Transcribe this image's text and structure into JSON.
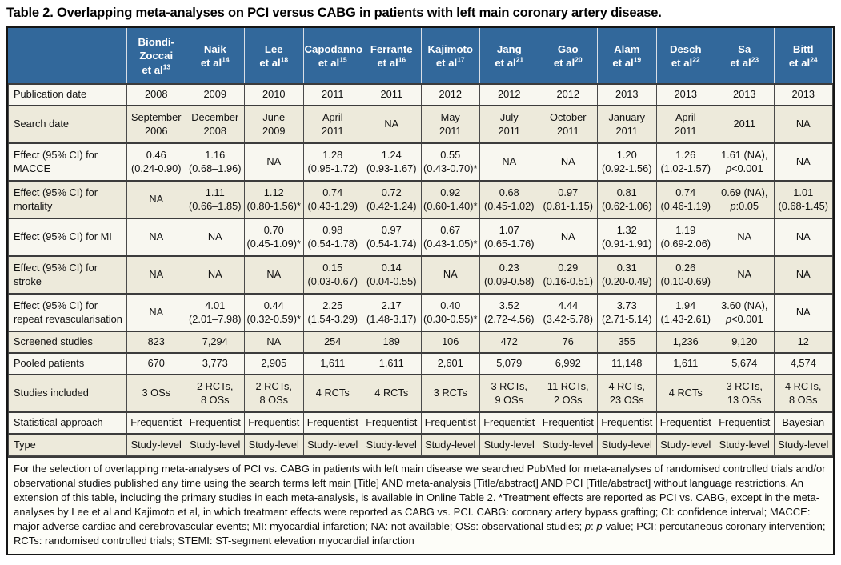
{
  "title": "Table 2. Overlapping meta-analyses on PCI versus CABG in patients with left main coronary artery disease.",
  "colors": {
    "header_bg": "#32689b",
    "header_text": "#ffffff",
    "row_plain_bg": "#f8f7f0",
    "row_alt_bg": "#edeadb",
    "footnote_bg": "#fdfdf8",
    "inner_border": "#4a4a4a",
    "outer_border": "#161616",
    "header_separator": "#d9dfe6"
  },
  "table": {
    "columns": [
      {
        "lines": [
          "Biondi-",
          "Zoccai",
          "et al"
        ],
        "sup": "13"
      },
      {
        "lines": [
          "Naik",
          "et al"
        ],
        "sup": "14"
      },
      {
        "lines": [
          "Lee",
          "et al"
        ],
        "sup": "18"
      },
      {
        "lines": [
          "Capodanno",
          "et al"
        ],
        "sup": "15"
      },
      {
        "lines": [
          "Ferrante",
          "et al"
        ],
        "sup": "16"
      },
      {
        "lines": [
          "Kajimoto",
          "et al"
        ],
        "sup": "17"
      },
      {
        "lines": [
          "Jang",
          "et al"
        ],
        "sup": "21"
      },
      {
        "lines": [
          "Gao",
          "et al"
        ],
        "sup": "20"
      },
      {
        "lines": [
          "Alam",
          "et al"
        ],
        "sup": "19"
      },
      {
        "lines": [
          "Desch",
          "et al"
        ],
        "sup": "22"
      },
      {
        "lines": [
          "Sa",
          "et al"
        ],
        "sup": "23"
      },
      {
        "lines": [
          "Bittl",
          "et al"
        ],
        "sup": "24"
      }
    ],
    "rows": [
      {
        "label": "Publication date",
        "values": [
          "2008",
          "2009",
          "2010",
          "2011",
          "2011",
          "2012",
          "2012",
          "2012",
          "2013",
          "2013",
          "2013",
          "2013"
        ]
      },
      {
        "label": "Search date",
        "values": [
          "September\n2006",
          "December\n2008",
          "June\n2009",
          "April\n2011",
          "NA",
          "May\n2011",
          "July\n2011",
          "October\n2011",
          "January\n2011",
          "April\n2011",
          "2011",
          "NA"
        ]
      },
      {
        "label": "Effect (95% CI) for MACCE",
        "values": [
          "0.46\n(0.24-0.90)",
          "1.16\n(0.68–1.96)",
          "NA",
          "1.28\n(0.95-1.72)",
          "1.24\n(0.93-1.67)",
          "0.55\n(0.43-0.70)*",
          "NA",
          "NA",
          "1.20\n(0.92-1.56)",
          "1.26\n(1.02-1.57)",
          "1.61 (NA),\np<0.001",
          "NA"
        ]
      },
      {
        "label": "Effect (95% CI) for mortality",
        "values": [
          "NA",
          "1.11\n(0.66–1.85)",
          "1.12\n(0.80-1.56)*",
          "0.74\n(0.43-1.29)",
          "0.72\n(0.42-1.24)",
          "0.92\n(0.60-1.40)*",
          "0.68\n(0.45-1.02)",
          "0.97\n(0.81-1.15)",
          "0.81\n(0.62-1.06)",
          "0.74\n(0.46-1.19)",
          "0.69 (NA),\np:0.05",
          "1.01\n(0.68-1.45)"
        ]
      },
      {
        "label": "Effect (95% CI) for MI",
        "values": [
          "NA",
          "NA",
          "0.70\n(0.45-1.09)*",
          "0.98\n(0.54-1.78)",
          "0.97\n(0.54-1.74)",
          "0.67\n(0.43-1.05)*",
          "1.07\n(0.65-1.76)",
          "NA",
          "1.32\n(0.91-1.91)",
          "1.19\n(0.69-2.06)",
          "NA",
          "NA"
        ]
      },
      {
        "label": "Effect (95% CI) for stroke",
        "values": [
          "NA",
          "NA",
          "NA",
          "0.15\n(0.03-0.67)",
          "0.14\n(0.04-0.55)",
          "NA",
          "0.23\n(0.09-0.58)",
          "0.29\n(0.16-0.51)",
          "0.31\n(0.20-0.49)",
          "0.26\n(0.10-0.69)",
          "NA",
          "NA"
        ]
      },
      {
        "label": "Effect (95% CI) for repeat revascularisation",
        "values": [
          "NA",
          "4.01\n(2.01–7.98)",
          "0.44\n(0.32-0.59)*",
          "2.25\n(1.54-3.29)",
          "2.17\n(1.48-3.17)",
          "0.40\n(0.30-0.55)*",
          "3.52\n(2.72-4.56)",
          "4.44\n(3.42-5.78)",
          "3.73\n(2.71-5.14)",
          "1.94\n(1.43-2.61)",
          "3.60 (NA),\np<0.001",
          "NA"
        ]
      },
      {
        "label": "Screened studies",
        "values": [
          "823",
          "7,294",
          "NA",
          "254",
          "189",
          "106",
          "472",
          "76",
          "355",
          "1,236",
          "9,120",
          "12"
        ]
      },
      {
        "label": "Pooled patients",
        "values": [
          "670",
          "3,773",
          "2,905",
          "1,611",
          "1,611",
          "2,601",
          "5,079",
          "6,992",
          "11,148",
          "1,611",
          "5,674",
          "4,574"
        ]
      },
      {
        "label": "Studies included",
        "values": [
          "3 OSs",
          "2 RCTs,\n8 OSs",
          "2 RCTs,\n8 OSs",
          "4 RCTs",
          "4 RCTs",
          "3 RCTs",
          "3 RCTs,\n9 OSs",
          "11 RCTs,\n2 OSs",
          "4 RCTs,\n23 OSs",
          "4 RCTs",
          "3 RCTs,\n13 OSs",
          "4 RCTs,\n8 OSs"
        ]
      },
      {
        "label": "Statistical approach",
        "values": [
          "Frequentist",
          "Frequentist",
          "Frequentist",
          "Frequentist",
          "Frequentist",
          "Frequentist",
          "Frequentist",
          "Frequentist",
          "Frequentist",
          "Frequentist",
          "Frequentist",
          "Bayesian"
        ]
      },
      {
        "label": "Type",
        "values": [
          "Study-level",
          "Study-level",
          "Study-level",
          "Study-level",
          "Study-level",
          "Study-level",
          "Study-level",
          "Study-level",
          "Study-level",
          "Study-level",
          "Study-level",
          "Study-level"
        ]
      }
    ]
  },
  "footnote": {
    "parts": [
      {
        "text": "For the selection of overlapping meta-analyses of PCI vs. CABG in patients with left main disease we searched PubMed for meta-analyses of randomised controlled trials and/or observational studies published any time using the search terms left main [Title] AND meta-analysis [Title/abstract] AND PCI [Title/abstract] without language restrictions. An extension of this table, including the primary studies in each meta-analysis, is available in Online Table 2. *Treatment effects are reported as PCI vs. CABG, except in the meta-analyses by Lee et al and Kajimoto et al, in which treatment effects were reported as CABG vs. PCI. CABG: coronary artery bypass grafting; CI: confidence interval; MACCE: major adverse cardiac and cerebrovascular events; MI: myocardial infarction; NA: not available; OSs: observational studies; ",
        "italic": false
      },
      {
        "text": "p",
        "italic": true
      },
      {
        "text": ": ",
        "italic": false
      },
      {
        "text": "p",
        "italic": true
      },
      {
        "text": "-value; PCI: percutaneous coronary intervention; RCTs: randomised controlled trials; STEMI: ST-segment elevation myocardial infarction",
        "italic": false
      }
    ]
  }
}
